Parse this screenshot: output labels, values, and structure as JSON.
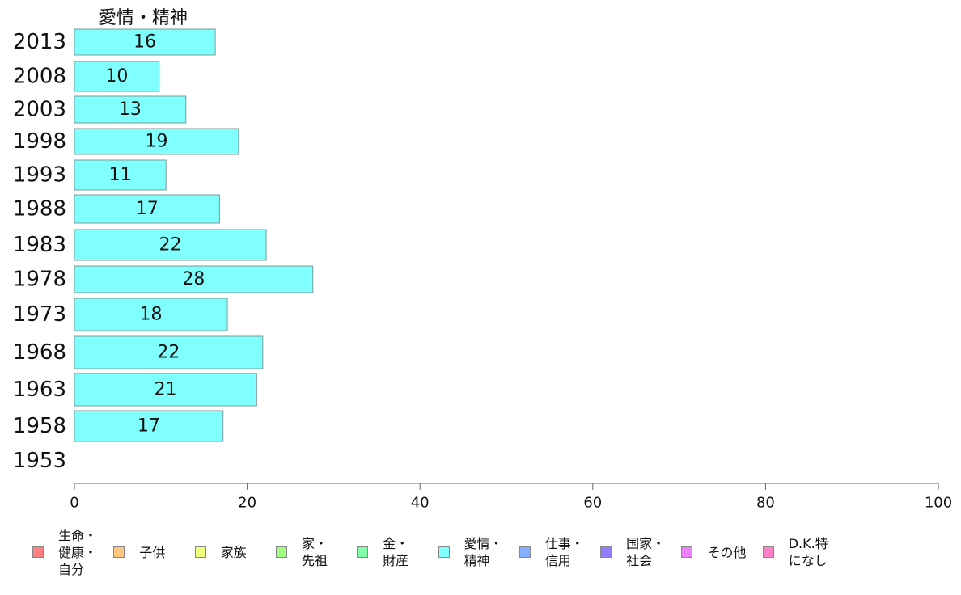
{
  "chart_data": {
    "type": "bar",
    "orientation": "horizontal",
    "series_title": "愛情・精神",
    "categories": [
      "2013",
      "2008",
      "2003",
      "1998",
      "1993",
      "1988",
      "1983",
      "1978",
      "1973",
      "1968",
      "1963",
      "1958",
      "1953"
    ],
    "series": [
      {
        "name": "愛情・精神",
        "color": "#80ffff",
        "values": [
          16,
          10,
          13,
          19,
          11,
          17,
          22,
          28,
          18,
          22,
          21,
          17,
          null
        ],
        "bar_values": [
          16.3,
          9.8,
          12.9,
          19.0,
          10.6,
          16.8,
          22.2,
          27.6,
          17.7,
          21.8,
          21.1,
          17.2,
          null
        ]
      }
    ],
    "xlim": [
      0,
      100
    ],
    "x_ticks": [
      "0",
      "20",
      "40",
      "60",
      "80",
      "100"
    ],
    "grid": false,
    "legend_position": "bottom",
    "legend": [
      {
        "label": "生命・\n健康・\n自分",
        "color": "#ff8080"
      },
      {
        "label": "子供",
        "color": "#ffc880"
      },
      {
        "label": "家族",
        "color": "#f0ff80"
      },
      {
        "label": "家・\n先祖",
        "color": "#a0ff80"
      },
      {
        "label": "金・\n財産",
        "color": "#80ffa8"
      },
      {
        "label": "愛情・\n精神",
        "color": "#80ffff"
      },
      {
        "label": "仕事・\n信用",
        "color": "#80b0ff"
      },
      {
        "label": "国家・\n社会",
        "color": "#9080ff"
      },
      {
        "label": "その他",
        "color": "#ee80ff"
      },
      {
        "label": "D.K.特\nになし",
        "color": "#ff80c8"
      }
    ]
  }
}
